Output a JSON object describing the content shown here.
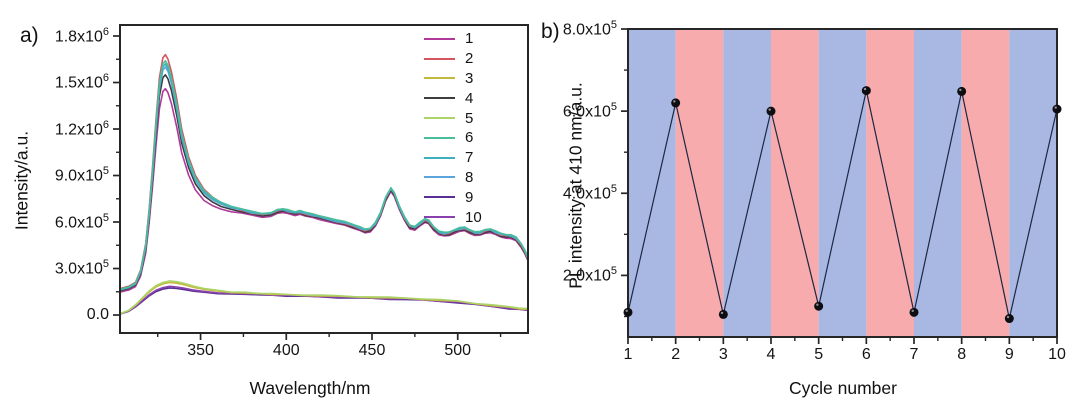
{
  "figure": {
    "panel_a_tag": "a)",
    "panel_b_tag": "b)",
    "background": "#ffffff"
  },
  "chart_data": [
    {
      "id": "a",
      "type": "line",
      "title": "",
      "xlabel": "Wavelength/nm",
      "ylabel": "Intensity/a.u.",
      "xlim": [
        303,
        541
      ],
      "ylim": [
        -116000,
        1871000
      ],
      "grid": false,
      "legend_position": "top-right-inside",
      "xticks": [
        {
          "v": 350,
          "label": "350"
        },
        {
          "v": 400,
          "label": "400"
        },
        {
          "v": 450,
          "label": "450"
        },
        {
          "v": 500,
          "label": "500"
        }
      ],
      "x_minor_ticks": [
        325,
        375,
        425,
        475,
        525
      ],
      "yticks": [
        {
          "v": 0,
          "base": "0.0",
          "exp": ""
        },
        {
          "v": 300000,
          "base": "3.0x10",
          "exp": "5"
        },
        {
          "v": 600000,
          "base": "6.0x10",
          "exp": "5"
        },
        {
          "v": 900000,
          "base": "9.0x10",
          "exp": "5"
        },
        {
          "v": 1200000,
          "base": "1.2x10",
          "exp": "6"
        },
        {
          "v": 1500000,
          "base": "1.5x10",
          "exp": "6"
        },
        {
          "v": 1800000,
          "base": "1.8x10",
          "exp": "6"
        }
      ],
      "y_minor_ticks": [
        150000,
        450000,
        750000,
        1050000,
        1350000,
        1650000
      ],
      "value_unit": 100000,
      "shape_blend": {
        "full_until_nm": 338,
        "zero_after_nm": 376
      },
      "shapes": {
        "high": {
          "peak_ref": 16.8,
          "points": [
            [
              303,
              1.7
            ],
            [
              308,
              1.85
            ],
            [
              312,
              2.1
            ],
            [
              315,
              2.9
            ],
            [
              318,
              4.6
            ],
            [
              320,
              6.8
            ],
            [
              322,
              9.6
            ],
            [
              324,
              12.6
            ],
            [
              326,
              15.3
            ],
            [
              328,
              16.6
            ],
            [
              329.5,
              16.8
            ],
            [
              331,
              16.5
            ],
            [
              333,
              15.7
            ],
            [
              336,
              14.0
            ],
            [
              339,
              12.0
            ],
            [
              343,
              10.2
            ],
            [
              347,
              9.0
            ],
            [
              352,
              8.1
            ],
            [
              357,
              7.6
            ],
            [
              362,
              7.25
            ],
            [
              368,
              6.95
            ],
            [
              374,
              6.75
            ],
            [
              380,
              6.55
            ],
            [
              386,
              6.45
            ],
            [
              391,
              6.5
            ],
            [
              395,
              6.7
            ],
            [
              398,
              6.75
            ],
            [
              401,
              6.65
            ],
            [
              405,
              6.55
            ],
            [
              408,
              6.6
            ],
            [
              411,
              6.5
            ],
            [
              415,
              6.4
            ],
            [
              419,
              6.3
            ],
            [
              424,
              6.15
            ],
            [
              429,
              6.0
            ],
            [
              434,
              5.9
            ],
            [
              439,
              5.72
            ],
            [
              443,
              5.55
            ],
            [
              446,
              5.42
            ],
            [
              449,
              5.5
            ],
            [
              452,
              5.85
            ],
            [
              455,
              6.5
            ],
            [
              458,
              7.5
            ],
            [
              461,
              8.1
            ],
            [
              463,
              7.8
            ],
            [
              466,
              6.9
            ],
            [
              469,
              6.2
            ],
            [
              472,
              5.7
            ],
            [
              475,
              5.6
            ],
            [
              478,
              5.85
            ],
            [
              481,
              6.1
            ],
            [
              483,
              6.0
            ],
            [
              486,
              5.6
            ],
            [
              489,
              5.3
            ],
            [
              492,
              5.2
            ],
            [
              495,
              5.25
            ],
            [
              498,
              5.4
            ],
            [
              501,
              5.5
            ],
            [
              504,
              5.55
            ],
            [
              507,
              5.4
            ],
            [
              510,
              5.25
            ],
            [
              513,
              5.25
            ],
            [
              516,
              5.4
            ],
            [
              519,
              5.45
            ],
            [
              522,
              5.3
            ],
            [
              525,
              5.15
            ],
            [
              528,
              5.1
            ],
            [
              531,
              5.05
            ],
            [
              534,
              4.9
            ],
            [
              537,
              4.5
            ],
            [
              539,
              4.1
            ],
            [
              541,
              3.6
            ]
          ]
        },
        "low": {
          "peak_ref": 2.2,
          "points": [
            [
              303,
              0.08
            ],
            [
              308,
              0.3
            ],
            [
              312,
              0.65
            ],
            [
              316,
              1.1
            ],
            [
              320,
              1.55
            ],
            [
              324,
              1.9
            ],
            [
              328,
              2.1
            ],
            [
              332,
              2.2
            ],
            [
              336,
              2.15
            ],
            [
              340,
              2.05
            ],
            [
              346,
              1.85
            ],
            [
              352,
              1.7
            ],
            [
              360,
              1.55
            ],
            [
              368,
              1.45
            ],
            [
              376,
              1.4
            ],
            [
              384,
              1.35
            ],
            [
              392,
              1.32
            ],
            [
              400,
              1.28
            ],
            [
              410,
              1.25
            ],
            [
              420,
              1.22
            ],
            [
              430,
              1.18
            ],
            [
              440,
              1.15
            ],
            [
              450,
              1.12
            ],
            [
              460,
              1.08
            ],
            [
              470,
              1.05
            ],
            [
              480,
              1.0
            ],
            [
              490,
              0.93
            ],
            [
              500,
              0.85
            ],
            [
              510,
              0.72
            ],
            [
              520,
              0.6
            ],
            [
              530,
              0.47
            ],
            [
              536,
              0.4
            ],
            [
              541,
              0.35
            ]
          ]
        }
      },
      "series": [
        {
          "name": "1",
          "color": "#b0399a",
          "group": "high",
          "peak": 14.6,
          "tail_offset": -0.12
        },
        {
          "name": "2",
          "color": "#d4555e",
          "group": "high",
          "peak": 16.8,
          "tail_offset": 0.02
        },
        {
          "name": "3",
          "color": "#c4b83e",
          "group": "low",
          "peak": 2.1,
          "tail_offset": 0.02
        },
        {
          "name": "4",
          "color": "#3d3d3d",
          "group": "high",
          "peak": 15.5,
          "tail_offset": -0.05
        },
        {
          "name": "5",
          "color": "#abd366",
          "group": "low",
          "peak": 2.2,
          "tail_offset": 0.05
        },
        {
          "name": "6",
          "color": "#49bd9c",
          "group": "high",
          "peak": 16.4,
          "tail_offset": 0.12
        },
        {
          "name": "7",
          "color": "#3fafbe",
          "group": "high",
          "peak": 16.2,
          "tail_offset": 0.09
        },
        {
          "name": "8",
          "color": "#5ba4dc",
          "group": "high",
          "peak": 16.0,
          "tail_offset": 0.05
        },
        {
          "name": "9",
          "color": "#5a2f93",
          "group": "low",
          "peak": 1.75,
          "tail_offset": -0.05
        },
        {
          "name": "10",
          "color": "#8a41ae",
          "group": "low",
          "peak": 1.85,
          "tail_offset": -0.02
        }
      ],
      "draw_order": [
        "9",
        "10",
        "3",
        "5",
        "1",
        "4",
        "2",
        "8",
        "7",
        "6"
      ],
      "line_width": 1.6
    },
    {
      "id": "b",
      "type": "scatter-line",
      "title": "",
      "xlabel": "Cycle number",
      "ylabel": "PL intensity at 410 nm/a.u.",
      "xlim": [
        1,
        10
      ],
      "ylim": [
        50000,
        800000
      ],
      "grid": false,
      "xticks": [
        {
          "v": 1,
          "label": "1"
        },
        {
          "v": 2,
          "label": "2"
        },
        {
          "v": 3,
          "label": "3"
        },
        {
          "v": 4,
          "label": "4"
        },
        {
          "v": 5,
          "label": "5"
        },
        {
          "v": 6,
          "label": "6"
        },
        {
          "v": 7,
          "label": "7"
        },
        {
          "v": 8,
          "label": "8"
        },
        {
          "v": 9,
          "label": "9"
        },
        {
          "v": 10,
          "label": "10"
        }
      ],
      "x_minor_ticks": [
        1.5,
        2.5,
        3.5,
        4.5,
        5.5,
        6.5,
        7.5,
        8.5,
        9.5
      ],
      "yticks": [
        {
          "v": 200000,
          "base": "2.0x10",
          "exp": "5"
        },
        {
          "v": 400000,
          "base": "4.0x10",
          "exp": "5"
        },
        {
          "v": 600000,
          "base": "6.0x10",
          "exp": "5"
        },
        {
          "v": 800000,
          "base": "8.0x10",
          "exp": "5"
        }
      ],
      "y_minor_ticks": [
        100000,
        300000,
        500000,
        700000
      ],
      "x": [
        1,
        2,
        3,
        4,
        5,
        6,
        7,
        8,
        9,
        10
      ],
      "values": [
        110000,
        620000,
        105000,
        600000,
        125000,
        650000,
        110000,
        648000,
        95000,
        605000
      ],
      "stripes": [
        {
          "from": 1,
          "to": 2,
          "color": "#a9b7e3"
        },
        {
          "from": 2,
          "to": 3,
          "color": "#f7abac"
        },
        {
          "from": 3,
          "to": 4,
          "color": "#a9b7e3"
        },
        {
          "from": 4,
          "to": 5,
          "color": "#f7abac"
        },
        {
          "from": 5,
          "to": 6,
          "color": "#a9b7e3"
        },
        {
          "from": 6,
          "to": 7,
          "color": "#f7abac"
        },
        {
          "from": 7,
          "to": 8,
          "color": "#a9b7e3"
        },
        {
          "from": 8,
          "to": 9,
          "color": "#f7abac"
        },
        {
          "from": 9,
          "to": 10,
          "color": "#a9b7e3"
        }
      ],
      "line_color": "#1c2745",
      "marker_color": "#0d0d12",
      "marker_radius": 4.5
    }
  ],
  "style": {
    "axis_color": "#262626",
    "tick_color": "#262626",
    "text_color": "#141414"
  }
}
